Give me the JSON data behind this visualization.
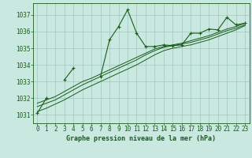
{
  "bg_color": "#c8e8e0",
  "grid_color": "#a0c8c0",
  "line_color": "#1a5c1a",
  "title": "Graphe pression niveau de la mer (hPa)",
  "xlim": [
    -0.5,
    23.5
  ],
  "ylim": [
    1030.5,
    1037.7
  ],
  "xticks": [
    0,
    1,
    2,
    3,
    4,
    5,
    6,
    7,
    8,
    9,
    10,
    11,
    12,
    13,
    14,
    15,
    16,
    17,
    18,
    19,
    20,
    21,
    22,
    23
  ],
  "yticks": [
    1031,
    1032,
    1033,
    1034,
    1035,
    1036,
    1037
  ],
  "series": [
    {
      "x": [
        0,
        1,
        2,
        3,
        4,
        5,
        6,
        7,
        8,
        9,
        10,
        11,
        12,
        13,
        14,
        15,
        16,
        17,
        18,
        19,
        20,
        21,
        22,
        23
      ],
      "y": [
        1031.1,
        1032.0,
        null,
        1033.1,
        1033.8,
        null,
        null,
        1033.3,
        1035.5,
        1036.3,
        1037.3,
        1035.9,
        1035.1,
        1035.1,
        1035.2,
        1035.15,
        1035.2,
        1035.9,
        1035.9,
        1036.15,
        1036.1,
        1036.85,
        1036.4,
        1036.5
      ],
      "marker": true
    },
    {
      "x": [
        0,
        1,
        2,
        3,
        4,
        5,
        6,
        7,
        8,
        9,
        10,
        11,
        12,
        13,
        14,
        15,
        16,
        17,
        18,
        19,
        20,
        21,
        22,
        23
      ],
      "y": [
        1031.5,
        1031.7,
        1031.9,
        1032.2,
        1032.5,
        1032.8,
        1033.05,
        1033.3,
        1033.55,
        1033.8,
        1034.05,
        1034.3,
        1034.6,
        1034.85,
        1035.05,
        1035.15,
        1035.25,
        1035.35,
        1035.5,
        1035.65,
        1035.85,
        1036.05,
        1036.2,
        1036.4
      ],
      "marker": false
    },
    {
      "x": [
        0,
        1,
        2,
        3,
        4,
        5,
        6,
        7,
        8,
        9,
        10,
        11,
        12,
        13,
        14,
        15,
        16,
        17,
        18,
        19,
        20,
        21,
        22,
        23
      ],
      "y": [
        1031.7,
        1031.9,
        1032.1,
        1032.4,
        1032.7,
        1033.0,
        1033.2,
        1033.45,
        1033.7,
        1033.95,
        1034.2,
        1034.45,
        1034.7,
        1034.95,
        1035.1,
        1035.2,
        1035.3,
        1035.45,
        1035.6,
        1035.75,
        1035.95,
        1036.15,
        1036.3,
        1036.5
      ],
      "marker": false
    },
    {
      "x": [
        0,
        1,
        2,
        3,
        4,
        5,
        6,
        7,
        8,
        9,
        10,
        11,
        12,
        13,
        14,
        15,
        16,
        17,
        18,
        19,
        20,
        21,
        22,
        23
      ],
      "y": [
        1031.2,
        1031.4,
        1031.65,
        1031.9,
        1032.2,
        1032.5,
        1032.75,
        1033.0,
        1033.25,
        1033.5,
        1033.75,
        1034.0,
        1034.3,
        1034.6,
        1034.85,
        1035.0,
        1035.1,
        1035.2,
        1035.35,
        1035.5,
        1035.7,
        1035.9,
        1036.1,
        1036.35
      ],
      "marker": false
    }
  ],
  "tick_fontsize": 5.5,
  "title_fontsize": 6.0
}
